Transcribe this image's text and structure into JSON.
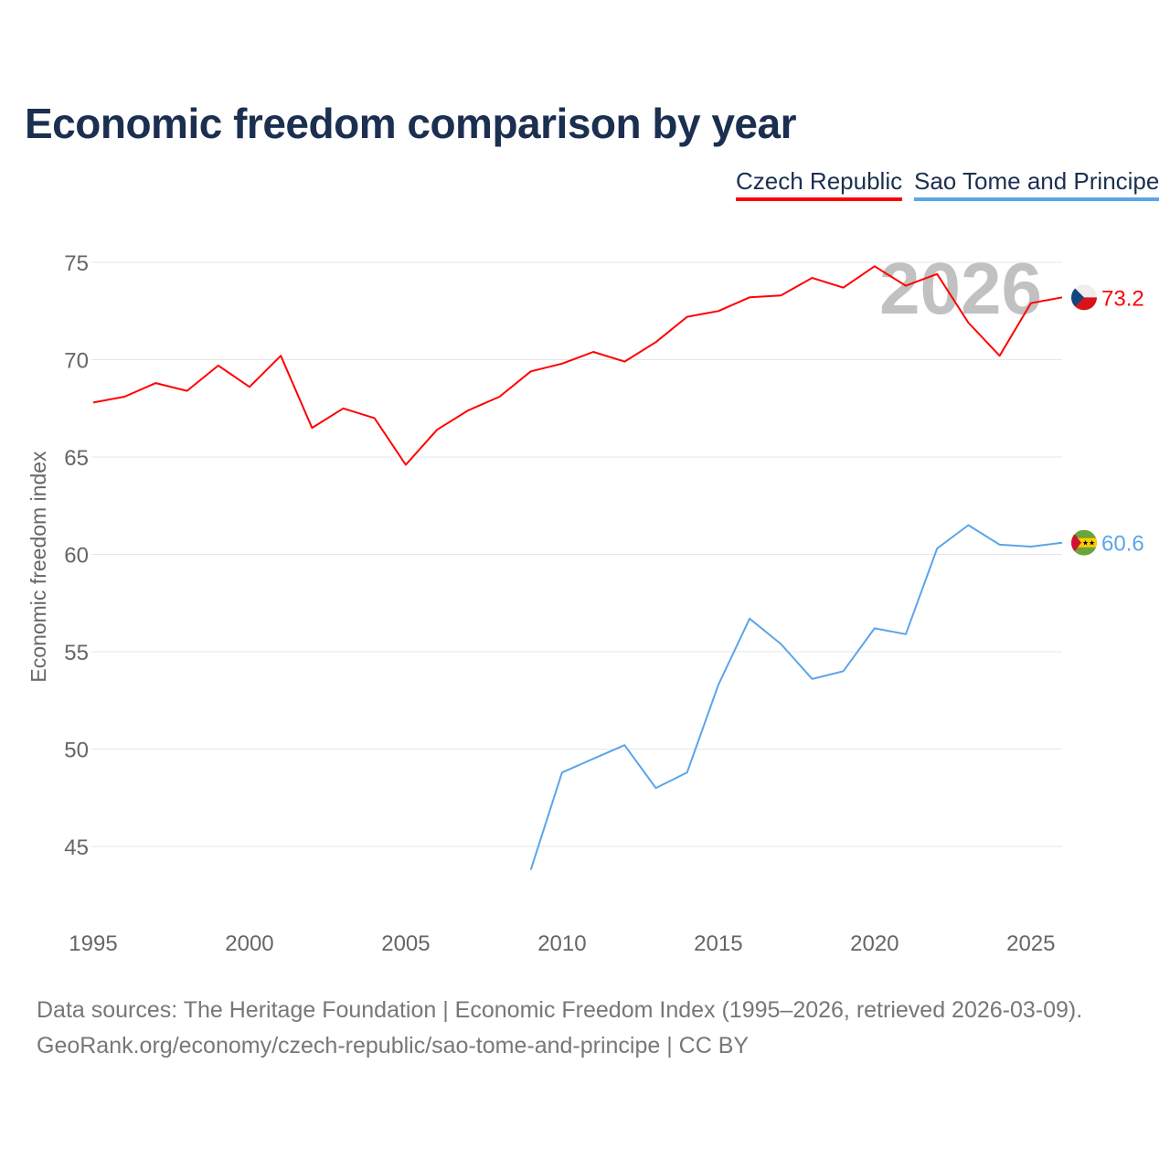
{
  "chart_data": {
    "type": "line",
    "title": "Economic freedom comparison by year",
    "xlabel": "",
    "ylabel": "Economic freedom index",
    "xlim": [
      1995,
      2026
    ],
    "ylim": [
      42,
      76.5
    ],
    "xticks": [
      1995,
      2000,
      2005,
      2010,
      2015,
      2020,
      2025
    ],
    "yticks": [
      45,
      50,
      55,
      60,
      65,
      70,
      75
    ],
    "grid": true,
    "legend_position": "top-right",
    "current_year_label": "2026",
    "series": [
      {
        "name": "Czech Republic",
        "color": "#ff0000",
        "end_label": "73.2",
        "flag": "czech-republic-flag",
        "x": [
          1995,
          1996,
          1997,
          1998,
          1999,
          2000,
          2001,
          2002,
          2003,
          2004,
          2005,
          2006,
          2007,
          2008,
          2009,
          2010,
          2011,
          2012,
          2013,
          2014,
          2015,
          2016,
          2017,
          2018,
          2019,
          2020,
          2021,
          2022,
          2023,
          2024,
          2025,
          2026
        ],
        "values": [
          67.8,
          68.1,
          68.8,
          68.4,
          69.7,
          68.6,
          70.2,
          66.5,
          67.5,
          67.0,
          64.6,
          66.4,
          67.4,
          68.1,
          69.4,
          69.8,
          70.4,
          69.9,
          70.9,
          72.2,
          72.5,
          73.2,
          73.3,
          74.2,
          73.7,
          74.8,
          73.8,
          74.4,
          71.9,
          70.2,
          72.9,
          73.2
        ]
      },
      {
        "name": "Sao Tome and Principe",
        "color": "#5aa5ea",
        "end_label": "60.6",
        "flag": "sao-tome-and-principe-flag",
        "x": [
          2009,
          2010,
          2011,
          2012,
          2013,
          2014,
          2015,
          2016,
          2017,
          2018,
          2019,
          2020,
          2021,
          2022,
          2023,
          2024,
          2025,
          2026
        ],
        "values": [
          43.8,
          48.8,
          49.5,
          50.2,
          48.0,
          48.8,
          53.3,
          56.7,
          55.4,
          53.6,
          54.0,
          56.2,
          55.9,
          60.3,
          61.5,
          60.5,
          60.4,
          60.6
        ]
      }
    ]
  },
  "footer": {
    "line1": "Data sources: The Heritage Foundation | Economic Freedom Index (1995–2026, retrieved 2026-03-09).",
    "line2": "GeoRank.org/economy/czech-republic/sao-tome-and-principe | CC BY"
  }
}
